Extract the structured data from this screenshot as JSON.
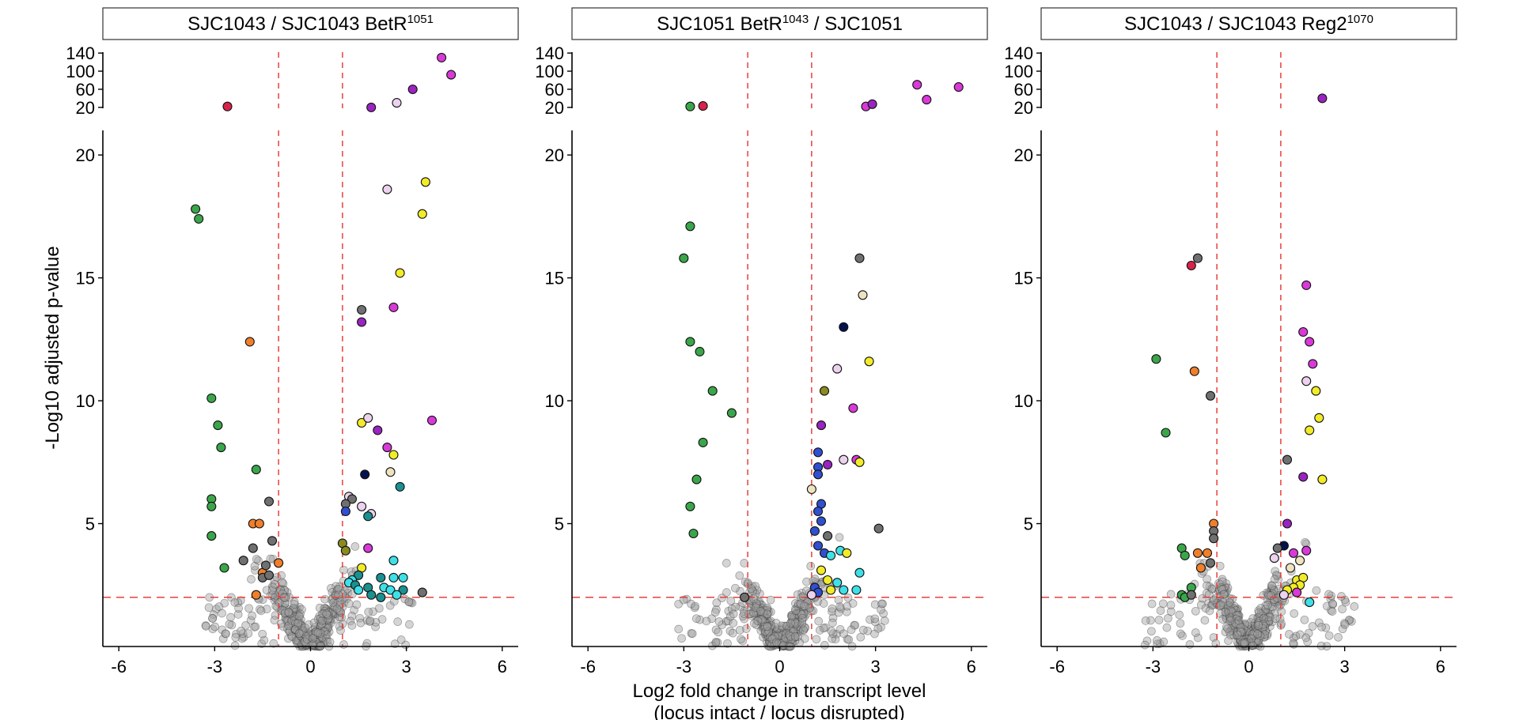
{
  "figure": {
    "ylabel": "-Log10 adjusted p-value",
    "xlabel_line1": "Log2 fold change in transcript level",
    "xlabel_line2": "(locus intact / locus disrupted)"
  },
  "colors": {
    "threshold_line": "#e8403a",
    "background_point": "#a0a0a0",
    "green": "#3aa64a",
    "orange": "#f07f2b",
    "gray": "#707070",
    "red": "#d8234a",
    "magenta": "#d83ad8",
    "purple": "#9a24c0",
    "lightpink": "#ecd2ee",
    "yellow": "#f2ec28",
    "cyan": "#3ee0e8",
    "teal": "#1b9090",
    "blue": "#3050d0",
    "navy": "#06124e",
    "olive": "#8a8a20",
    "beige": "#efe2c0"
  },
  "chart_data": [
    {
      "type": "scatter",
      "title_main": "SJC1043 / SJC1043 BetR",
      "title_sup": "1051",
      "xlim": [
        -6.5,
        6.5
      ],
      "xticks": [
        -6,
        -3,
        0,
        3,
        6
      ],
      "xtick_labels": [
        "-6",
        "-3",
        "0",
        "3",
        "6"
      ],
      "ylim_lower": [
        0,
        21
      ],
      "yticks_lower": [
        5,
        10,
        15,
        20
      ],
      "ytick_labels_lower": [
        "5",
        "10",
        "15",
        "20"
      ],
      "ylim_upper": [
        18,
        142
      ],
      "yticks_upper": [
        20,
        60,
        100,
        140
      ],
      "ytick_labels_upper": [
        "20",
        "60",
        "100",
        "140"
      ],
      "thresholds": {
        "x": [
          -1,
          1
        ],
        "y": 2
      },
      "upper_points": [
        {
          "x": -2.6,
          "y": 22,
          "c": "red"
        },
        {
          "x": 1.9,
          "y": 20,
          "c": "purple"
        },
        {
          "x": 2.7,
          "y": 30,
          "c": "lightpink"
        },
        {
          "x": 3.2,
          "y": 60,
          "c": "purple"
        },
        {
          "x": 4.1,
          "y": 130,
          "c": "magenta"
        },
        {
          "x": 4.4,
          "y": 92,
          "c": "magenta"
        }
      ],
      "points": [
        {
          "x": -3.6,
          "y": 17.8,
          "c": "green"
        },
        {
          "x": -3.5,
          "y": 17.4,
          "c": "green"
        },
        {
          "x": -3.1,
          "y": 10.1,
          "c": "green"
        },
        {
          "x": -2.9,
          "y": 9.0,
          "c": "green"
        },
        {
          "x": -2.8,
          "y": 8.1,
          "c": "green"
        },
        {
          "x": -3.1,
          "y": 6.0,
          "c": "green"
        },
        {
          "x": -3.1,
          "y": 5.7,
          "c": "green"
        },
        {
          "x": -3.1,
          "y": 4.5,
          "c": "green"
        },
        {
          "x": -2.7,
          "y": 3.2,
          "c": "green"
        },
        {
          "x": -1.7,
          "y": 7.2,
          "c": "green"
        },
        {
          "x": -1.9,
          "y": 12.4,
          "c": "orange"
        },
        {
          "x": -1.8,
          "y": 5.0,
          "c": "orange"
        },
        {
          "x": -1.6,
          "y": 5.0,
          "c": "orange"
        },
        {
          "x": -1.5,
          "y": 3.0,
          "c": "orange"
        },
        {
          "x": -1.7,
          "y": 2.1,
          "c": "orange"
        },
        {
          "x": -1.0,
          "y": 3.4,
          "c": "orange"
        },
        {
          "x": -1.3,
          "y": 5.9,
          "c": "gray"
        },
        {
          "x": -1.2,
          "y": 4.3,
          "c": "gray"
        },
        {
          "x": -1.8,
          "y": 4.0,
          "c": "gray"
        },
        {
          "x": -1.4,
          "y": 3.3,
          "c": "gray"
        },
        {
          "x": -2.1,
          "y": 3.5,
          "c": "gray"
        },
        {
          "x": -1.5,
          "y": 2.8,
          "c": "gray"
        },
        {
          "x": -1.3,
          "y": 2.9,
          "c": "gray"
        },
        {
          "x": 1.6,
          "y": 13.7,
          "c": "gray"
        },
        {
          "x": 1.6,
          "y": 13.2,
          "c": "purple"
        },
        {
          "x": 2.6,
          "y": 13.8,
          "c": "magenta"
        },
        {
          "x": 2.4,
          "y": 18.6,
          "c": "lightpink"
        },
        {
          "x": 3.6,
          "y": 18.9,
          "c": "yellow"
        },
        {
          "x": 3.5,
          "y": 17.6,
          "c": "yellow"
        },
        {
          "x": 2.8,
          "y": 15.2,
          "c": "yellow"
        },
        {
          "x": 1.6,
          "y": 9.1,
          "c": "yellow"
        },
        {
          "x": 1.8,
          "y": 9.3,
          "c": "lightpink"
        },
        {
          "x": 2.1,
          "y": 8.8,
          "c": "purple"
        },
        {
          "x": 2.4,
          "y": 8.1,
          "c": "magenta"
        },
        {
          "x": 2.6,
          "y": 7.8,
          "c": "yellow"
        },
        {
          "x": 3.8,
          "y": 9.2,
          "c": "magenta"
        },
        {
          "x": 1.7,
          "y": 7.0,
          "c": "navy"
        },
        {
          "x": 2.5,
          "y": 7.1,
          "c": "beige"
        },
        {
          "x": 2.8,
          "y": 6.5,
          "c": "teal"
        },
        {
          "x": 1.2,
          "y": 6.1,
          "c": "lightpink"
        },
        {
          "x": 1.3,
          "y": 6.0,
          "c": "gray"
        },
        {
          "x": 1.1,
          "y": 5.8,
          "c": "gray"
        },
        {
          "x": 1.1,
          "y": 5.5,
          "c": "blue"
        },
        {
          "x": 1.6,
          "y": 5.7,
          "c": "lightpink"
        },
        {
          "x": 1.9,
          "y": 5.4,
          "c": "lightpink"
        },
        {
          "x": 1.8,
          "y": 5.3,
          "c": "teal"
        },
        {
          "x": 1.0,
          "y": 4.2,
          "c": "olive"
        },
        {
          "x": 1.1,
          "y": 3.9,
          "c": "olive"
        },
        {
          "x": 1.8,
          "y": 4.0,
          "c": "magenta"
        },
        {
          "x": 1.6,
          "y": 3.2,
          "c": "yellow"
        },
        {
          "x": 1.5,
          "y": 2.9,
          "c": "teal"
        },
        {
          "x": 1.3,
          "y": 2.7,
          "c": "cyan"
        },
        {
          "x": 1.2,
          "y": 2.6,
          "c": "cyan"
        },
        {
          "x": 1.4,
          "y": 2.5,
          "c": "teal"
        },
        {
          "x": 1.5,
          "y": 2.3,
          "c": "cyan"
        },
        {
          "x": 1.8,
          "y": 2.4,
          "c": "teal"
        },
        {
          "x": 1.9,
          "y": 2.1,
          "c": "teal"
        },
        {
          "x": 2.2,
          "y": 2.8,
          "c": "teal"
        },
        {
          "x": 2.3,
          "y": 2.4,
          "c": "cyan"
        },
        {
          "x": 2.5,
          "y": 2.3,
          "c": "cyan"
        },
        {
          "x": 2.6,
          "y": 2.8,
          "c": "cyan"
        },
        {
          "x": 2.6,
          "y": 3.5,
          "c": "cyan"
        },
        {
          "x": 2.9,
          "y": 2.8,
          "c": "cyan"
        },
        {
          "x": 2.9,
          "y": 2.3,
          "c": "teal"
        },
        {
          "x": 3.5,
          "y": 2.2,
          "c": "gray"
        },
        {
          "x": 2.2,
          "y": 2.0,
          "c": "teal"
        },
        {
          "x": 2.7,
          "y": 2.1,
          "c": "cyan"
        }
      ]
    },
    {
      "type": "scatter",
      "title_main": "SJC1051 BetR",
      "title_sup": "1043",
      "title_after": " / SJC1051",
      "xlim": [
        -6.5,
        6.5
      ],
      "xticks": [
        -6,
        -3,
        0,
        3,
        6
      ],
      "xtick_labels": [
        "-6",
        "-3",
        "0",
        "3",
        "6"
      ],
      "ylim_lower": [
        0,
        21
      ],
      "yticks_lower": [
        5,
        10,
        15,
        20
      ],
      "ytick_labels_lower": [
        "5",
        "10",
        "15",
        "20"
      ],
      "ylim_upper": [
        18,
        142
      ],
      "yticks_upper": [
        20,
        60,
        100,
        140
      ],
      "ytick_labels_upper": [
        "20",
        "60",
        "100",
        "140"
      ],
      "thresholds": {
        "x": [
          -1,
          1
        ],
        "y": 2
      },
      "upper_points": [
        {
          "x": -2.8,
          "y": 22,
          "c": "green"
        },
        {
          "x": -2.4,
          "y": 23,
          "c": "red"
        },
        {
          "x": 2.7,
          "y": 22,
          "c": "magenta"
        },
        {
          "x": 2.9,
          "y": 27,
          "c": "purple"
        },
        {
          "x": 4.3,
          "y": 70,
          "c": "magenta"
        },
        {
          "x": 4.6,
          "y": 37,
          "c": "magenta"
        },
        {
          "x": 5.6,
          "y": 65,
          "c": "magenta"
        }
      ],
      "points": [
        {
          "x": -2.8,
          "y": 17.1,
          "c": "green"
        },
        {
          "x": -3.0,
          "y": 15.8,
          "c": "green"
        },
        {
          "x": -2.8,
          "y": 12.4,
          "c": "green"
        },
        {
          "x": -2.5,
          "y": 12.0,
          "c": "green"
        },
        {
          "x": -2.1,
          "y": 10.4,
          "c": "green"
        },
        {
          "x": -1.5,
          "y": 9.5,
          "c": "green"
        },
        {
          "x": -2.4,
          "y": 8.3,
          "c": "green"
        },
        {
          "x": -2.6,
          "y": 6.8,
          "c": "green"
        },
        {
          "x": -2.8,
          "y": 5.7,
          "c": "green"
        },
        {
          "x": -2.7,
          "y": 4.6,
          "c": "green"
        },
        {
          "x": -1.1,
          "y": 2.0,
          "c": "gray"
        },
        {
          "x": 2.5,
          "y": 15.8,
          "c": "gray"
        },
        {
          "x": 2.6,
          "y": 14.3,
          "c": "beige"
        },
        {
          "x": 2.0,
          "y": 13.0,
          "c": "navy"
        },
        {
          "x": 2.8,
          "y": 11.6,
          "c": "yellow"
        },
        {
          "x": 1.8,
          "y": 11.3,
          "c": "lightpink"
        },
        {
          "x": 1.4,
          "y": 10.4,
          "c": "olive"
        },
        {
          "x": 2.3,
          "y": 9.7,
          "c": "magenta"
        },
        {
          "x": 1.3,
          "y": 9.0,
          "c": "purple"
        },
        {
          "x": 1.2,
          "y": 7.9,
          "c": "blue"
        },
        {
          "x": 1.2,
          "y": 7.3,
          "c": "blue"
        },
        {
          "x": 1.5,
          "y": 7.4,
          "c": "purple"
        },
        {
          "x": 2.0,
          "y": 7.6,
          "c": "lightpink"
        },
        {
          "x": 2.4,
          "y": 7.6,
          "c": "magenta"
        },
        {
          "x": 2.5,
          "y": 7.5,
          "c": "yellow"
        },
        {
          "x": 1.2,
          "y": 7.0,
          "c": "blue"
        },
        {
          "x": 1.0,
          "y": 6.4,
          "c": "beige"
        },
        {
          "x": 1.3,
          "y": 5.8,
          "c": "blue"
        },
        {
          "x": 1.2,
          "y": 5.5,
          "c": "blue"
        },
        {
          "x": 1.3,
          "y": 5.1,
          "c": "blue"
        },
        {
          "x": 1.1,
          "y": 4.7,
          "c": "blue"
        },
        {
          "x": 1.5,
          "y": 4.5,
          "c": "gray"
        },
        {
          "x": 3.1,
          "y": 4.8,
          "c": "gray"
        },
        {
          "x": 1.2,
          "y": 4.1,
          "c": "blue"
        },
        {
          "x": 1.4,
          "y": 3.8,
          "c": "blue"
        },
        {
          "x": 1.6,
          "y": 3.7,
          "c": "cyan"
        },
        {
          "x": 1.9,
          "y": 3.9,
          "c": "cyan"
        },
        {
          "x": 2.1,
          "y": 3.8,
          "c": "yellow"
        },
        {
          "x": 2.5,
          "y": 3.0,
          "c": "cyan"
        },
        {
          "x": 1.3,
          "y": 3.1,
          "c": "yellow"
        },
        {
          "x": 1.5,
          "y": 2.7,
          "c": "yellow"
        },
        {
          "x": 1.8,
          "y": 2.6,
          "c": "cyan"
        },
        {
          "x": 2.0,
          "y": 2.3,
          "c": "cyan"
        },
        {
          "x": 2.4,
          "y": 2.3,
          "c": "cyan"
        },
        {
          "x": 1.6,
          "y": 2.3,
          "c": "yellow"
        },
        {
          "x": 1.1,
          "y": 2.4,
          "c": "blue"
        },
        {
          "x": 1.2,
          "y": 2.2,
          "c": "blue"
        },
        {
          "x": 1.0,
          "y": 2.1,
          "c": "lightpink"
        }
      ]
    },
    {
      "type": "scatter",
      "title_main": "SJC1043 / SJC1043 Reg2",
      "title_sup": "1070",
      "xlim": [
        -6.5,
        6.5
      ],
      "xticks": [
        -6,
        -3,
        0,
        3,
        6
      ],
      "xtick_labels": [
        "-6",
        "-3",
        "0",
        "3",
        "6"
      ],
      "ylim_lower": [
        0,
        21
      ],
      "yticks_lower": [
        5,
        10,
        15,
        20
      ],
      "ytick_labels_lower": [
        "5",
        "10",
        "15",
        "20"
      ],
      "ylim_upper": [
        18,
        142
      ],
      "yticks_upper": [
        20,
        60,
        100,
        140
      ],
      "ytick_labels_upper": [
        "20",
        "60",
        "100",
        "140"
      ],
      "thresholds": {
        "x": [
          -1,
          1
        ],
        "y": 2
      },
      "upper_points": [
        {
          "x": 2.3,
          "y": 40,
          "c": "purple"
        }
      ],
      "points": [
        {
          "x": -1.8,
          "y": 15.5,
          "c": "red"
        },
        {
          "x": -1.6,
          "y": 15.8,
          "c": "gray"
        },
        {
          "x": -2.9,
          "y": 11.7,
          "c": "green"
        },
        {
          "x": -2.6,
          "y": 8.7,
          "c": "green"
        },
        {
          "x": -1.7,
          "y": 11.2,
          "c": "orange"
        },
        {
          "x": -1.2,
          "y": 10.2,
          "c": "gray"
        },
        {
          "x": -2.1,
          "y": 4.0,
          "c": "green"
        },
        {
          "x": -2.0,
          "y": 3.7,
          "c": "green"
        },
        {
          "x": -1.8,
          "y": 2.4,
          "c": "green"
        },
        {
          "x": -2.1,
          "y": 2.1,
          "c": "green"
        },
        {
          "x": -2.0,
          "y": 2.0,
          "c": "green"
        },
        {
          "x": -1.8,
          "y": 2.1,
          "c": "gray"
        },
        {
          "x": -1.1,
          "y": 5.0,
          "c": "orange"
        },
        {
          "x": -1.6,
          "y": 3.8,
          "c": "orange"
        },
        {
          "x": -1.3,
          "y": 3.8,
          "c": "orange"
        },
        {
          "x": -1.5,
          "y": 3.2,
          "c": "orange"
        },
        {
          "x": -1.1,
          "y": 4.7,
          "c": "gray"
        },
        {
          "x": -1.1,
          "y": 4.4,
          "c": "gray"
        },
        {
          "x": -1.2,
          "y": 3.4,
          "c": "gray"
        },
        {
          "x": 1.8,
          "y": 14.7,
          "c": "magenta"
        },
        {
          "x": 1.7,
          "y": 12.8,
          "c": "magenta"
        },
        {
          "x": 1.9,
          "y": 12.4,
          "c": "magenta"
        },
        {
          "x": 2.0,
          "y": 11.5,
          "c": "magenta"
        },
        {
          "x": 1.8,
          "y": 10.8,
          "c": "lightpink"
        },
        {
          "x": 2.1,
          "y": 10.4,
          "c": "yellow"
        },
        {
          "x": 2.2,
          "y": 9.3,
          "c": "yellow"
        },
        {
          "x": 1.9,
          "y": 8.8,
          "c": "yellow"
        },
        {
          "x": 1.2,
          "y": 7.6,
          "c": "gray"
        },
        {
          "x": 1.7,
          "y": 6.9,
          "c": "purple"
        },
        {
          "x": 2.3,
          "y": 6.8,
          "c": "yellow"
        },
        {
          "x": 1.2,
          "y": 5.0,
          "c": "purple"
        },
        {
          "x": 1.1,
          "y": 4.1,
          "c": "navy"
        },
        {
          "x": 0.9,
          "y": 4.0,
          "c": "gray"
        },
        {
          "x": 1.4,
          "y": 3.8,
          "c": "magenta"
        },
        {
          "x": 1.8,
          "y": 3.9,
          "c": "magenta"
        },
        {
          "x": 0.8,
          "y": 3.6,
          "c": "lightpink"
        },
        {
          "x": 1.6,
          "y": 3.5,
          "c": "beige"
        },
        {
          "x": 1.3,
          "y": 3.2,
          "c": "beige"
        },
        {
          "x": 1.5,
          "y": 2.7,
          "c": "yellow"
        },
        {
          "x": 1.7,
          "y": 2.8,
          "c": "yellow"
        },
        {
          "x": 1.6,
          "y": 2.5,
          "c": "yellow"
        },
        {
          "x": 1.4,
          "y": 2.4,
          "c": "yellow"
        },
        {
          "x": 1.2,
          "y": 2.3,
          "c": "yellow"
        },
        {
          "x": 1.1,
          "y": 2.1,
          "c": "lightpink"
        },
        {
          "x": 1.5,
          "y": 2.2,
          "c": "magenta"
        },
        {
          "x": 1.9,
          "y": 1.8,
          "c": "cyan"
        }
      ]
    }
  ]
}
